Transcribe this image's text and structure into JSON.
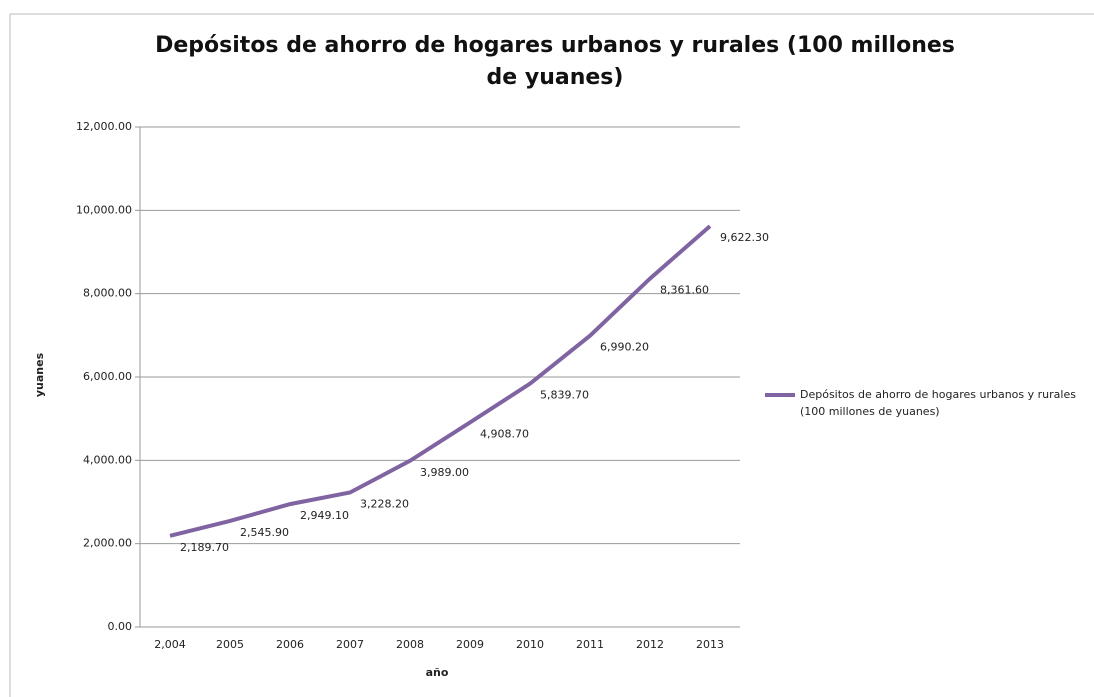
{
  "chart_data": {
    "type": "line",
    "title": "Depósitos de ahorro de hogares urbanos y rurales (100 millones de yuanes)",
    "x_label": "año",
    "y_label": "yuanes",
    "categories": [
      "2,004",
      "2005",
      "2006",
      "2007",
      "2008",
      "2009",
      "2010",
      "2011",
      "2012",
      "2013"
    ],
    "series": [
      {
        "name": "Depósitos de ahorro de hogares urbanos y rurales (100 millones de yuanes)",
        "color": "#8064a2",
        "values": [
          2189.7,
          2545.9,
          2949.1,
          3228.2,
          3989.0,
          4908.7,
          5839.7,
          6990.2,
          8361.6,
          9622.3
        ],
        "value_labels": [
          "2,189.70",
          "2,545.90",
          "2,949.10",
          "3,228.20",
          "3,989.00",
          "4,908.70",
          "5,839.70",
          "6,990.20",
          "8,361.60",
          "9,622.30"
        ]
      }
    ],
    "ylim": [
      0,
      12000
    ],
    "yticks": [
      {
        "value": 0,
        "label": "0.00"
      },
      {
        "value": 2000,
        "label": "2,000.00"
      },
      {
        "value": 4000,
        "label": "4,000.00"
      },
      {
        "value": 6000,
        "label": "6,000.00"
      },
      {
        "value": 8000,
        "label": "8,000.00"
      },
      {
        "value": 10000,
        "label": "10,000.00"
      },
      {
        "value": 12000,
        "label": "12,000.00"
      }
    ],
    "grid": true,
    "legend": "right"
  }
}
